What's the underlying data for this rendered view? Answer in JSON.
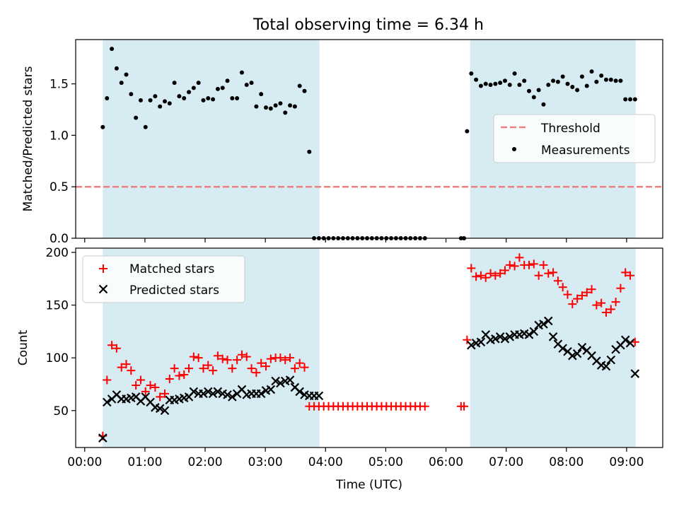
{
  "title": "Total observing time = 6.34 h",
  "colors": {
    "band": "#add8e6",
    "threshold": "#f08080",
    "matched": "#ff0000",
    "predicted": "#000000",
    "measurement": "#000000"
  },
  "chart_data": [
    {
      "type": "scatter",
      "ylabel": "Matched/Predicted stars",
      "ylim": [
        0,
        1.93
      ],
      "yticks": [
        0.0,
        0.5,
        1.0,
        1.5
      ],
      "ytick_labels": [
        "0.0",
        "0.5",
        "1.0",
        "1.5"
      ],
      "xlim": [
        -0.15,
        9.6
      ],
      "legend": {
        "position": "center-right",
        "entries": [
          "Threshold",
          "Measurements"
        ]
      },
      "threshold": {
        "name": "Threshold",
        "y": 0.5
      },
      "shaded_intervals": [
        [
          0.3,
          3.9
        ],
        [
          6.4,
          9.15
        ]
      ],
      "series": [
        {
          "name": "Measurements",
          "x": [
            0.3,
            0.37,
            0.45,
            0.53,
            0.61,
            0.69,
            0.77,
            0.85,
            0.93,
            1.01,
            1.09,
            1.17,
            1.25,
            1.33,
            1.41,
            1.49,
            1.57,
            1.65,
            1.73,
            1.81,
            1.89,
            1.97,
            2.05,
            2.13,
            2.21,
            2.29,
            2.37,
            2.45,
            2.53,
            2.61,
            2.69,
            2.77,
            2.85,
            2.93,
            3.01,
            3.09,
            3.17,
            3.25,
            3.33,
            3.41,
            3.49,
            3.57,
            3.65,
            3.73,
            3.81,
            3.89,
            3.97,
            4.05,
            4.13,
            4.21,
            4.29,
            4.37,
            4.45,
            4.53,
            4.61,
            4.69,
            4.77,
            4.85,
            4.93,
            5.01,
            5.09,
            5.17,
            5.25,
            5.33,
            5.41,
            5.49,
            5.57,
            5.65,
            6.25,
            6.3,
            6.35,
            6.42,
            6.5,
            6.58,
            6.66,
            6.74,
            6.82,
            6.9,
            6.98,
            7.06,
            7.14,
            7.22,
            7.3,
            7.38,
            7.46,
            7.54,
            7.62,
            7.7,
            7.78,
            7.86,
            7.94,
            8.02,
            8.1,
            8.18,
            8.26,
            8.34,
            8.42,
            8.5,
            8.58,
            8.66,
            8.74,
            8.82,
            8.9,
            8.98,
            9.06,
            9.14
          ],
          "y": [
            1.08,
            1.36,
            1.84,
            1.65,
            1.51,
            1.59,
            1.4,
            1.17,
            1.34,
            1.08,
            1.34,
            1.38,
            1.28,
            1.33,
            1.31,
            1.51,
            1.38,
            1.36,
            1.42,
            1.46,
            1.51,
            1.34,
            1.36,
            1.35,
            1.45,
            1.46,
            1.53,
            1.36,
            1.36,
            1.61,
            1.49,
            1.51,
            1.28,
            1.4,
            1.27,
            1.26,
            1.29,
            1.31,
            1.22,
            1.29,
            1.28,
            1.48,
            1.43,
            0.84,
            0.0,
            0.0,
            0.0,
            0.0,
            0.0,
            0.0,
            0.0,
            0.0,
            0.0,
            0.0,
            0.0,
            0.0,
            0.0,
            0.0,
            0.0,
            0.0,
            0.0,
            0.0,
            0.0,
            0.0,
            0.0,
            0.0,
            0.0,
            0.0,
            0.0,
            0.0,
            1.04,
            1.6,
            1.54,
            1.48,
            1.5,
            1.49,
            1.5,
            1.51,
            1.53,
            1.49,
            1.6,
            1.49,
            1.53,
            1.43,
            1.37,
            1.44,
            1.3,
            1.49,
            1.53,
            1.52,
            1.57,
            1.5,
            1.47,
            1.44,
            1.57,
            1.48,
            1.62,
            1.52,
            1.58,
            1.54,
            1.54,
            1.53,
            1.53,
            1.35,
            1.35,
            1.35
          ]
        }
      ]
    },
    {
      "type": "scatter",
      "xlabel": "Time (UTC)",
      "ylabel": "Count",
      "ylim": [
        15,
        204
      ],
      "yticks": [
        50,
        100,
        150,
        200
      ],
      "ytick_labels": [
        "50",
        "100",
        "150",
        "200"
      ],
      "xlim": [
        -0.15,
        9.6
      ],
      "xticks": [
        0,
        1,
        2,
        3,
        4,
        5,
        6,
        7,
        8,
        9
      ],
      "xtick_labels": [
        "00:00",
        "01:00",
        "02:00",
        "03:00",
        "04:00",
        "05:00",
        "06:00",
        "07:00",
        "08:00",
        "09:00"
      ],
      "legend": {
        "position": "top-left",
        "entries": [
          "Matched stars",
          "Predicted stars"
        ]
      },
      "shaded_intervals": [
        [
          0.3,
          3.9
        ],
        [
          6.4,
          9.15
        ]
      ],
      "series": [
        {
          "name": "Matched stars",
          "marker": "plus",
          "x": [
            0.3,
            0.37,
            0.45,
            0.53,
            0.61,
            0.69,
            0.77,
            0.85,
            0.93,
            1.01,
            1.09,
            1.17,
            1.25,
            1.33,
            1.41,
            1.49,
            1.57,
            1.65,
            1.73,
            1.81,
            1.89,
            1.97,
            2.05,
            2.13,
            2.21,
            2.29,
            2.37,
            2.45,
            2.53,
            2.61,
            2.69,
            2.77,
            2.85,
            2.93,
            3.01,
            3.09,
            3.17,
            3.25,
            3.33,
            3.41,
            3.49,
            3.57,
            3.65,
            3.73,
            3.81,
            3.89,
            3.97,
            4.05,
            4.13,
            4.21,
            4.29,
            4.37,
            4.45,
            4.53,
            4.61,
            4.69,
            4.77,
            4.85,
            4.93,
            5.01,
            5.09,
            5.17,
            5.25,
            5.33,
            5.41,
            5.49,
            5.57,
            5.65,
            6.25,
            6.3,
            6.35,
            6.42,
            6.5,
            6.58,
            6.66,
            6.74,
            6.82,
            6.9,
            6.98,
            7.06,
            7.14,
            7.22,
            7.3,
            7.38,
            7.46,
            7.54,
            7.62,
            7.7,
            7.78,
            7.86,
            7.94,
            8.02,
            8.1,
            8.18,
            8.26,
            8.34,
            8.42,
            8.5,
            8.58,
            8.66,
            8.74,
            8.82,
            8.9,
            8.98,
            9.06,
            9.14
          ],
          "y": [
            26,
            79,
            112,
            109,
            91,
            94,
            88,
            74,
            79,
            68,
            74,
            72,
            63,
            66,
            80,
            90,
            83,
            84,
            90,
            101,
            100,
            90,
            93,
            88,
            102,
            99,
            98,
            90,
            98,
            103,
            101,
            90,
            86,
            95,
            92,
            99,
            100,
            100,
            98,
            100,
            90,
            95,
            91,
            54,
            54,
            54,
            54,
            54,
            54,
            54,
            54,
            54,
            54,
            54,
            54,
            54,
            54,
            54,
            54,
            54,
            54,
            54,
            54,
            54,
            54,
            54,
            54,
            54,
            54,
            54,
            117,
            185,
            177,
            178,
            176,
            180,
            178,
            180,
            183,
            188,
            187,
            195,
            188,
            188,
            189,
            178,
            188,
            180,
            181,
            173,
            167,
            160,
            151,
            156,
            159,
            162,
            165,
            150,
            152,
            143,
            146,
            153,
            166,
            181,
            178,
            115
          ]
        },
        {
          "name": "Predicted stars",
          "marker": "x",
          "x": [
            0.3,
            0.37,
            0.45,
            0.53,
            0.61,
            0.69,
            0.77,
            0.85,
            0.93,
            1.01,
            1.09,
            1.17,
            1.25,
            1.33,
            1.41,
            1.49,
            1.57,
            1.65,
            1.73,
            1.81,
            1.89,
            1.97,
            2.05,
            2.13,
            2.21,
            2.29,
            2.37,
            2.45,
            2.53,
            2.61,
            2.69,
            2.77,
            2.85,
            2.93,
            3.01,
            3.09,
            3.17,
            3.25,
            3.33,
            3.41,
            3.49,
            3.57,
            3.65,
            3.73,
            3.81,
            3.89,
            6.42,
            6.5,
            6.58,
            6.66,
            6.74,
            6.82,
            6.9,
            6.98,
            7.06,
            7.14,
            7.22,
            7.3,
            7.38,
            7.46,
            7.54,
            7.62,
            7.7,
            7.78,
            7.86,
            7.94,
            8.02,
            8.1,
            8.18,
            8.26,
            8.34,
            8.42,
            8.5,
            8.58,
            8.66,
            8.74,
            8.82,
            8.9,
            8.98,
            9.06,
            9.14
          ],
          "y": [
            24,
            58,
            61,
            65,
            61,
            61,
            62,
            63,
            59,
            63,
            58,
            53,
            52,
            50,
            60,
            60,
            61,
            62,
            63,
            68,
            66,
            66,
            68,
            66,
            68,
            66,
            65,
            63,
            66,
            70,
            65,
            66,
            66,
            66,
            69,
            70,
            78,
            76,
            78,
            79,
            72,
            68,
            65,
            64,
            64,
            64,
            112,
            114,
            115,
            122,
            117,
            118,
            120,
            118,
            120,
            122,
            122,
            123,
            122,
            125,
            131,
            132,
            135,
            120,
            113,
            109,
            106,
            102,
            104,
            110,
            107,
            102,
            97,
            93,
            92,
            98,
            108,
            112,
            117,
            114,
            85
          ]
        }
      ]
    }
  ]
}
